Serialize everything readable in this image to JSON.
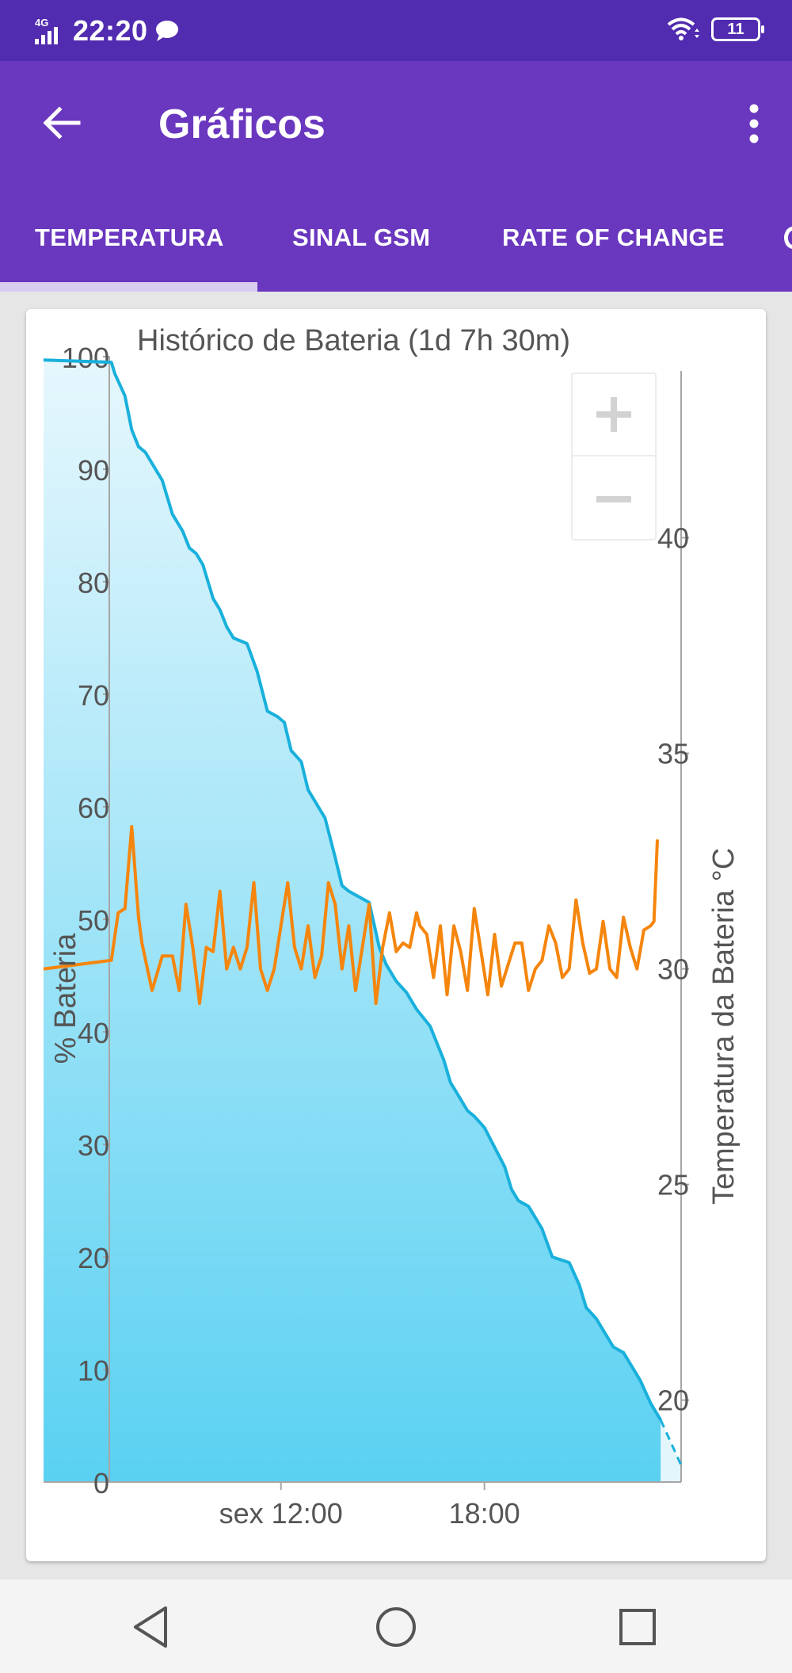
{
  "status_bar": {
    "network": "4G",
    "time": "22:20",
    "battery": "11"
  },
  "app_bar": {
    "title": "Gráficos"
  },
  "tabs": [
    {
      "label": "TEMPERATURA",
      "selected": true
    },
    {
      "label": "SINAL GSM",
      "selected": false
    },
    {
      "label": "RATE OF CHANGE",
      "selected": false
    }
  ],
  "colors": {
    "status_bar": "#512bb0",
    "app_bar": "#6a37bf",
    "battery_line": "#19b0dc",
    "temperature_line": "#f5850c",
    "fill_top": "#e6f7fd",
    "fill_bottom": "#5ad1f2"
  },
  "icons": {
    "back": "arrow-left-icon",
    "menu": "more-vert-icon",
    "zoom_in": "plus-icon",
    "zoom_out": "minus-icon",
    "nav_back": "triangle-back-icon",
    "nav_home": "circle-home-icon",
    "nav_recent": "square-recent-icon"
  },
  "chart_data": {
    "type": "line",
    "title": "Histórico de Bateria (1d 7h 30m)",
    "ylabel": "% Bateria",
    "y2label": "Temperatura da Bateria °C",
    "ylim": [
      0,
      100
    ],
    "y2lim": [
      18.1,
      44.2
    ],
    "yticks": [
      "100",
      "90",
      "80",
      "70",
      "60",
      "50",
      "40",
      "30",
      "20",
      "10",
      "0"
    ],
    "y2ticks": [
      "40",
      "35",
      "30",
      "25",
      "20"
    ],
    "xticks": [
      {
        "label": "sex 12:00",
        "hour": 12
      },
      {
        "label": "18:00",
        "hour": 18
      }
    ],
    "xlim_hours": [
      5.0,
      23.8
    ],
    "grid": false,
    "series": [
      {
        "axis": "left",
        "x_hours": [
          5.0,
          7.0,
          7.1,
          7.4,
          7.6,
          7.8,
          8.0,
          8.5,
          8.8,
          9.1,
          9.3,
          9.5,
          9.7,
          10.0,
          10.2,
          10.4,
          10.6,
          11.0,
          11.3,
          11.6,
          11.9,
          12.1,
          12.3,
          12.6,
          12.8,
          13.0,
          13.3,
          13.6,
          13.8,
          14.0,
          14.3,
          14.6,
          14.9,
          15.1,
          15.4,
          15.7,
          16.0,
          16.4,
          16.8,
          17.0,
          17.3,
          17.5,
          17.7,
          18.0,
          18.6,
          18.8,
          19.0,
          19.3,
          19.5,
          19.7,
          20.0,
          20.5,
          20.8,
          21.0,
          21.3,
          21.5,
          21.8,
          22.1,
          22.3,
          22.6,
          22.9,
          23.1,
          23.2
        ],
        "values": [
          99.7,
          99.5,
          98.5,
          96.5,
          93.5,
          92.0,
          91.5,
          89.0,
          86.0,
          84.5,
          83.0,
          82.5,
          81.5,
          78.5,
          77.5,
          76.0,
          75.0,
          74.5,
          72.0,
          68.5,
          68.0,
          67.5,
          65.0,
          64.0,
          61.5,
          60.5,
          59.0,
          55.5,
          53.0,
          52.5,
          52.0,
          51.5,
          47.5,
          46.0,
          44.5,
          43.5,
          42.0,
          40.5,
          37.5,
          35.5,
          34.0,
          33.0,
          32.5,
          31.5,
          28.0,
          26.0,
          25.0,
          24.5,
          23.5,
          22.5,
          20.0,
          19.5,
          17.5,
          15.5,
          14.5,
          13.5,
          12.0,
          11.5,
          10.5,
          9.0,
          7.0,
          6.0,
          5.5
        ]
      },
      {
        "axis": "left",
        "projected": true,
        "x_hours": [
          23.2,
          23.8
        ],
        "values": [
          5.5,
          1.5
        ]
      },
      {
        "axis": "right",
        "x_hours": [
          5.0,
          7.0,
          7.2,
          7.4,
          7.6,
          7.8,
          7.9,
          8.2,
          8.5,
          8.8,
          9.0,
          9.2,
          9.4,
          9.6,
          9.8,
          10.0,
          10.2,
          10.4,
          10.6,
          10.8,
          11.0,
          11.2,
          11.4,
          11.6,
          11.8,
          12.0,
          12.2,
          12.4,
          12.6,
          12.8,
          13.0,
          13.2,
          13.4,
          13.6,
          13.8,
          14.0,
          14.2,
          14.4,
          14.6,
          14.8,
          15.0,
          15.2,
          15.4,
          15.6,
          15.8,
          16.0,
          16.1,
          16.3,
          16.5,
          16.7,
          16.9,
          17.1,
          17.3,
          17.5,
          17.7,
          17.9,
          18.1,
          18.3,
          18.5,
          18.7,
          18.9,
          19.1,
          19.3,
          19.5,
          19.7,
          19.9,
          20.1,
          20.3,
          20.5,
          20.7,
          20.9,
          21.1,
          21.3,
          21.5,
          21.7,
          21.9,
          22.1,
          22.3,
          22.5,
          22.7,
          22.9,
          23.0,
          23.1
        ],
        "values": [
          30.0,
          30.2,
          31.3,
          31.4,
          33.3,
          31.2,
          30.6,
          29.5,
          30.3,
          30.3,
          29.5,
          31.5,
          30.5,
          29.2,
          30.5,
          30.4,
          31.8,
          30.0,
          30.5,
          30.0,
          30.5,
          32.0,
          30.0,
          29.5,
          30.0,
          31.0,
          32.0,
          30.5,
          30.0,
          31.0,
          29.8,
          30.3,
          32.0,
          31.5,
          30.0,
          31.0,
          29.5,
          30.5,
          31.5,
          29.2,
          30.5,
          31.3,
          30.4,
          30.6,
          30.5,
          31.3,
          31.0,
          30.8,
          29.8,
          31.0,
          29.4,
          31.0,
          30.4,
          29.5,
          31.4,
          30.4,
          29.4,
          30.8,
          29.6,
          30.1,
          30.6,
          30.6,
          29.5,
          30.0,
          30.2,
          31.0,
          30.6,
          29.8,
          30.0,
          31.6,
          30.6,
          29.9,
          30.0,
          31.1,
          30.0,
          29.8,
          31.2,
          30.5,
          30.0,
          30.9,
          31.0,
          31.1,
          33.0
        ]
      }
    ]
  }
}
